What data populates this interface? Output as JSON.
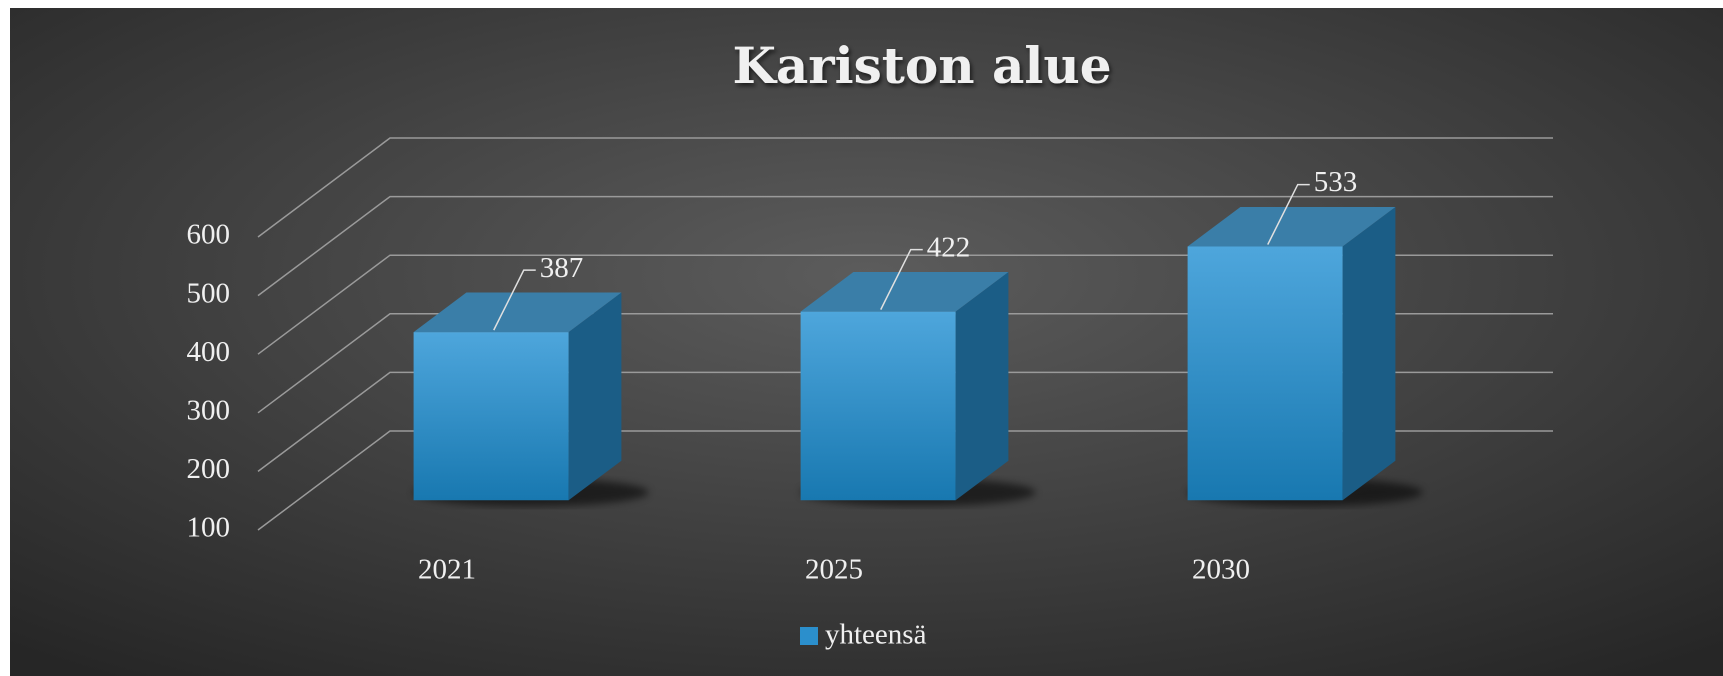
{
  "chart_data": {
    "type": "bar3d",
    "title": "Kariston alue",
    "categories": [
      "2021",
      "2025",
      "2030"
    ],
    "series": [
      {
        "name": "yhteensä",
        "color": "#2b8fcc",
        "values": [
          387,
          422,
          533
        ]
      }
    ],
    "ylim": [
      100,
      600
    ],
    "yticks": [
      100,
      200,
      300,
      400,
      500,
      600
    ],
    "grid": true,
    "legend": "bottom"
  }
}
